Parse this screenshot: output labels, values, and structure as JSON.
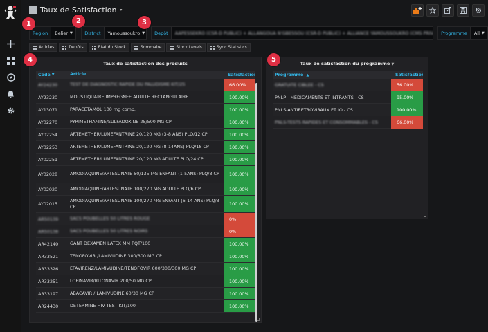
{
  "dashboard": {
    "title": "Taux de Satisfaction"
  },
  "badges": [
    "1",
    "2",
    "3",
    "4",
    "5"
  ],
  "variables": {
    "region": {
      "label": "Region",
      "value": "Belier"
    },
    "district": {
      "label": "District",
      "value": "Yamoussoukro"
    },
    "depot": {
      "label": "Depôt",
      "value": "AAPESSEKRO (CSR-D PUBLIC) + ALLANGOUA N'GBESSOU (CSR-D PUBLIC) + ALLIANCE YAMOUSSOUKRO (CMS PRIVE) +"
    },
    "programme": {
      "label": "Programme",
      "value": "All"
    }
  },
  "links": [
    "Articles",
    "Depôts",
    "Etat du Stock",
    "Sommaire",
    "Stock Levels",
    "Sync Statistics"
  ],
  "products_panel": {
    "title": "Taux de satisfaction des produits",
    "headers": {
      "code": "Code",
      "article": "Article",
      "satisfaction": "Satisfaction"
    },
    "rows": [
      {
        "code": "AY24230",
        "article": "TEST DE DIAGNOSTIC RAPIDE DU PALUDISME KIT/25",
        "sat": "66.00%",
        "status": "red",
        "blurred": true
      },
      {
        "code": "AY23230",
        "article": "MOUSTIQUAIRE IMPREGNEE ADULTE RECTANGULAIRE",
        "sat": "100.00%",
        "status": "green"
      },
      {
        "code": "AY13071",
        "article": "PARACETAMOL 100 mg comp.",
        "sat": "100.00%",
        "status": "green"
      },
      {
        "code": "AY02270",
        "article": "PYRIMETHAMINE/SULFADOXINE 25/500 MG CP",
        "sat": "100.00%",
        "status": "green"
      },
      {
        "code": "AY02254",
        "article": "ARTEMETHER/LUMEFANTRINE 20/120 MG (3-8 ANS) PLQ/12 CP",
        "sat": "100.00%",
        "status": "green"
      },
      {
        "code": "AY02253",
        "article": "ARTEMETHER/LUMEFANTRINE 20/120 MG (8-14ANS) PLQ/18 CP",
        "sat": "100.00%",
        "status": "green"
      },
      {
        "code": "AY02251",
        "article": "ARTEMETHER/LUMEFANTRINE 20/120 MG ADULTE PLQ/24 CP",
        "sat": "100.00%",
        "status": "green"
      },
      {
        "code": "AY02028",
        "article": "AMODIAQUINE/ARTESUNATE 50/135 MG ENFANT (1-5ANS) PLQ/3 CP",
        "sat": "100.00%",
        "status": "green",
        "tall": true
      },
      {
        "code": "AY02020",
        "article": "AMODIAQUINE/ARTESUNATE 100/270 MG ADULTE PLQ/6 CP",
        "sat": "100.00%",
        "status": "green"
      },
      {
        "code": "AY02015",
        "article": "AMODIAQUINE/ARTESUNATE 100/270 MG ENFANT (6-14 ANS) PLQ/3 CP",
        "sat": "100.00%",
        "status": "green",
        "tall": true
      },
      {
        "code": "AR50139",
        "article": "SACS POUBELLES 50 LITRES ROUGE",
        "sat": "0%",
        "status": "red",
        "blurred": true
      },
      {
        "code": "AR50138",
        "article": "SACS POUBELLES 50 LITRES NOIRS",
        "sat": "0%",
        "status": "red",
        "blurred": true
      },
      {
        "code": "AR42140",
        "article": "GANT DEXAMEN LATEX MM PQT/100",
        "sat": "100.00%",
        "status": "green"
      },
      {
        "code": "AR33521",
        "article": "TENOFOVIR /LAMIVUDINE 300/300 MG CP",
        "sat": "100.00%",
        "status": "green"
      },
      {
        "code": "AR33326",
        "article": "EFAVIRENZ/LAMIVUDINE/TENOFOVIR 600/300/300 MG CP",
        "sat": "100.00%",
        "status": "green"
      },
      {
        "code": "AR33251",
        "article": "LOPINAVIR/RITONAVIR 200/50 MG CP",
        "sat": "100.00%",
        "status": "green"
      },
      {
        "code": "AR33197",
        "article": "ABACAVIR / LAMIVUDINE 60/30 MG CP",
        "sat": "100.00%",
        "status": "green"
      },
      {
        "code": "AR24430",
        "article": "DETERMINE HIV TEST KIT/100",
        "sat": "100.00%",
        "status": "green"
      }
    ]
  },
  "programme_panel": {
    "title": "Taux de satisfaction du programme",
    "headers": {
      "programme": "Programme",
      "satisfaction": "Satisfaction"
    },
    "rows": [
      {
        "programme": "GRATUITE CIBLEE - CS",
        "sat": "56.00%",
        "status": "red",
        "blurred": true
      },
      {
        "programme": "PNLP - MEDICAMENTS ET INTRANTS - CS",
        "sat": "95.00%",
        "status": "green"
      },
      {
        "programme": "PNLS-ANTIRETROVIRAUX ET IO - CS",
        "sat": "100.00%",
        "status": "green"
      },
      {
        "programme": "PNLS-TESTS RAPIDES ET CONSOMMABLES - CS",
        "sat": "66.00%",
        "status": "red",
        "blurred": true
      }
    ]
  },
  "colors": {
    "green": "#299c46",
    "red": "#d44a3a",
    "accent": "#33b5e5"
  },
  "icons": [
    "grafana-logo",
    "plus-icon",
    "dashboards-icon",
    "explore-icon",
    "bell-icon",
    "gear-icon",
    "add-panel-icon",
    "star-icon",
    "share-icon",
    "save-icon",
    "settings-icon"
  ]
}
